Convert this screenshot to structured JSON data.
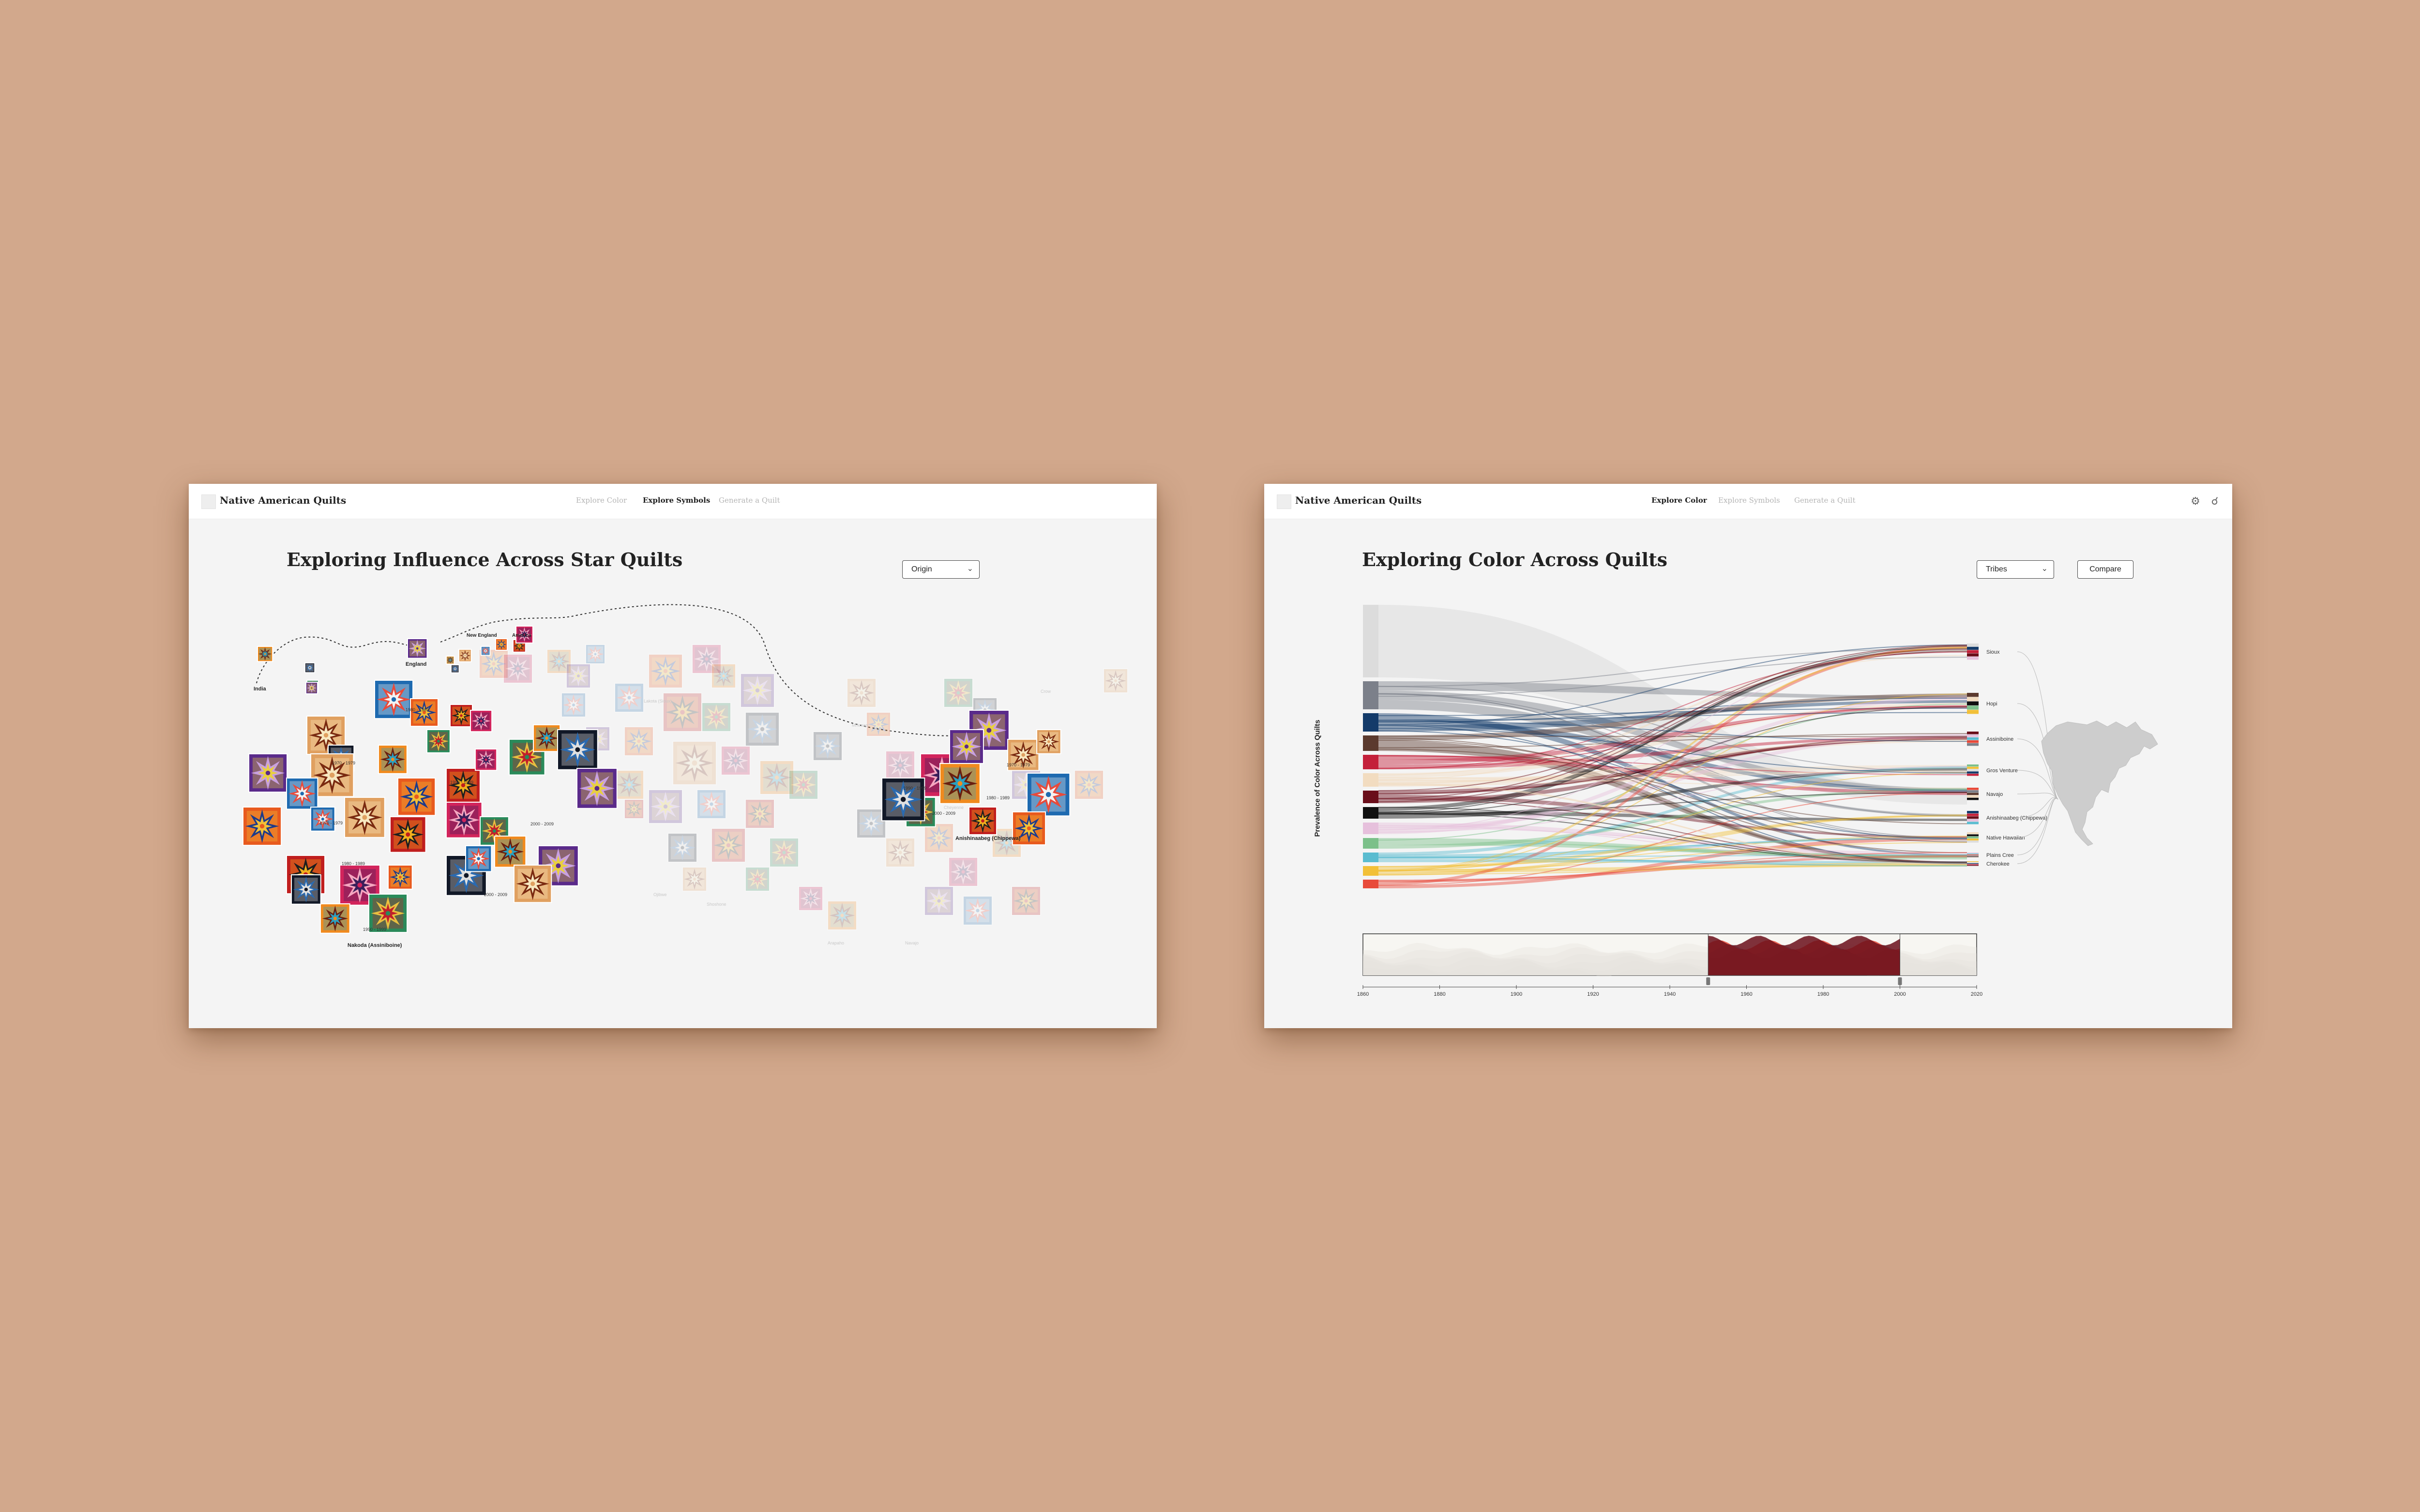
{
  "left_screen": {
    "app_title": "Native American Quilts",
    "nav": [
      "Explore Color",
      "Explore Symbols",
      "Generate a Quilt"
    ],
    "active_nav": "Explore Symbols",
    "page_title": "Exploring Influence Across Star Quilts",
    "dropdown_value": "Origin",
    "origin_labels": [
      "India",
      "England",
      "New England",
      "America"
    ],
    "group_labels": [
      "Nakoda (Assiniboine)",
      "Anishinaabeg (Chippewa)"
    ],
    "date_labels": [
      "1970 - 1979",
      "1980 - 1989",
      "1990 - 1999",
      "2000 - 2009"
    ],
    "faded_labels": [
      "Lakota (Sioux)",
      "Mi'kmaq",
      "Cheyenne",
      "Arapaho",
      "Navajo",
      "Crow",
      "Ojibwe",
      "Shoshone"
    ]
  },
  "right_screen": {
    "app_title": "Native American Quilts",
    "nav": [
      "Explore Color",
      "Explore Symbols",
      "Generate a Quilt"
    ],
    "active_nav": "Explore Color",
    "page_title": "Exploring Color Across Quilts",
    "dropdown_value": "Tribes",
    "compare_label": "Compare",
    "y_axis_label": "Prevalence of Color Across Quilts",
    "icons": [
      "gear-icon",
      "bell-icon"
    ],
    "tribes": [
      "Sioux",
      "Hopi",
      "Assiniboine",
      "Gros Venture",
      "Navajo",
      "Anishinaabeg (Chippewa)",
      "Native Hawaiian",
      "Plains Cree",
      "Cherokee"
    ],
    "timeline_ticks": [
      "1860",
      "1880",
      "1900",
      "1920",
      "1940",
      "1960",
      "1980",
      "2000",
      "2020"
    ],
    "timeline_range": [
      "1950",
      "2000"
    ]
  },
  "colors": {
    "page_bg": "#d2a88c",
    "panel_bg": "#f4f4f4",
    "swatches": [
      "#dcdcdc",
      "#7c808a",
      "#143b6a",
      "#5b3a2e",
      "#c4203a",
      "#f2dcc0",
      "#6a0e1a",
      "#101010",
      "#e6c0dc",
      "#7cc08a",
      "#5abcd0",
      "#f2c038",
      "#e84a3a"
    ]
  }
}
